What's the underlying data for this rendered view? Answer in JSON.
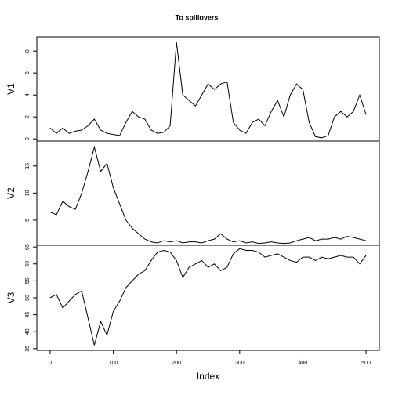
{
  "chart_data": [
    {
      "type": "line",
      "title": "To spillovers",
      "ylabel": "V1",
      "color": "#000000",
      "x": [
        0,
        10,
        20,
        30,
        40,
        50,
        60,
        70,
        80,
        90,
        100,
        110,
        120,
        130,
        140,
        150,
        160,
        170,
        180,
        190,
        200,
        210,
        220,
        230,
        240,
        250,
        260,
        270,
        280,
        290,
        300,
        310,
        320,
        330,
        340,
        350,
        360,
        370,
        380,
        390,
        400,
        410,
        420,
        430,
        440,
        450,
        460,
        470,
        480,
        490,
        500
      ],
      "values": [
        1.0,
        0.5,
        1.0,
        0.5,
        0.7,
        0.8,
        1.2,
        1.8,
        0.8,
        0.5,
        0.4,
        0.3,
        1.5,
        2.5,
        2.0,
        1.8,
        0.8,
        0.5,
        0.6,
        1.2,
        8.8,
        4.0,
        3.5,
        3.0,
        4.0,
        5.0,
        4.5,
        5.0,
        5.2,
        1.5,
        0.8,
        0.5,
        1.5,
        1.8,
        1.2,
        2.5,
        3.5,
        2.0,
        4.0,
        5.0,
        4.5,
        1.5,
        0.2,
        0.1,
        0.3,
        2.0,
        2.5,
        2.0,
        2.5,
        4.0,
        2.2
      ],
      "xlim": [
        -21,
        521
      ],
      "ylim": [
        -0.2,
        9.3
      ],
      "yticks": [
        0,
        2,
        4,
        6,
        8
      ]
    },
    {
      "type": "line",
      "ylabel": "V2",
      "color": "#000000",
      "x": [
        0,
        10,
        20,
        30,
        40,
        50,
        60,
        70,
        80,
        90,
        100,
        110,
        120,
        130,
        140,
        150,
        160,
        170,
        180,
        190,
        200,
        210,
        220,
        230,
        240,
        250,
        260,
        270,
        280,
        290,
        300,
        310,
        320,
        330,
        340,
        350,
        360,
        370,
        380,
        390,
        400,
        410,
        420,
        430,
        440,
        450,
        460,
        470,
        480,
        490,
        500
      ],
      "values": [
        6.5,
        6.0,
        8.5,
        7.5,
        7.0,
        10.0,
        14.0,
        18.5,
        14.0,
        15.5,
        11.0,
        8.0,
        5.0,
        3.5,
        2.5,
        1.5,
        1.0,
        0.8,
        1.2,
        1.0,
        1.2,
        0.8,
        1.0,
        1.0,
        0.8,
        1.2,
        1.5,
        2.5,
        1.5,
        1.0,
        1.2,
        0.8,
        1.0,
        0.7,
        0.8,
        1.0,
        0.8,
        0.7,
        0.8,
        1.2,
        1.5,
        1.8,
        1.2,
        1.5,
        1.5,
        1.8,
        1.5,
        2.0,
        1.8,
        1.5,
        1.2
      ],
      "xlim": [
        -21,
        521
      ],
      "ylim": [
        0.36,
        19.6
      ],
      "yticks": [
        5,
        10,
        15
      ]
    },
    {
      "type": "line",
      "ylabel": "V3",
      "xlabel": "Index",
      "color": "#000000",
      "x": [
        0,
        10,
        20,
        30,
        40,
        50,
        60,
        70,
        80,
        90,
        100,
        110,
        120,
        130,
        140,
        150,
        160,
        170,
        180,
        190,
        200,
        210,
        220,
        230,
        240,
        250,
        260,
        270,
        280,
        290,
        300,
        310,
        320,
        330,
        340,
        350,
        360,
        370,
        380,
        390,
        400,
        410,
        420,
        430,
        440,
        450,
        460,
        470,
        480,
        490,
        500
      ],
      "values": [
        50,
        51,
        47,
        49,
        51,
        52,
        44,
        36,
        43,
        39,
        46,
        49,
        53,
        55,
        57,
        58,
        61,
        63.5,
        64,
        63.5,
        61,
        56,
        59,
        60,
        61,
        59,
        60,
        58,
        59,
        63,
        64.5,
        64,
        64,
        63.5,
        62,
        62.5,
        63,
        62,
        61,
        60.5,
        62,
        62,
        61,
        62,
        61.5,
        62,
        62.5,
        62,
        62,
        60,
        62.5
      ],
      "xlim": [
        -21,
        521
      ],
      "xticks": [
        0,
        100,
        200,
        300,
        400,
        500
      ],
      "ylim": [
        34.5,
        65.5
      ],
      "yticks": [
        35,
        40,
        45,
        50,
        55,
        60,
        65
      ]
    }
  ]
}
